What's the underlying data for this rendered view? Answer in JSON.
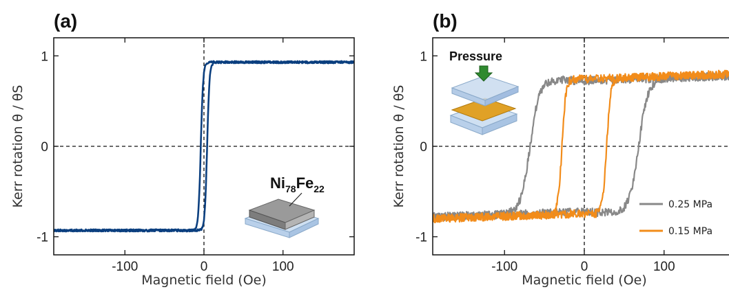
{
  "chart_data": [
    {
      "type": "line",
      "panel_label": "(a)",
      "xlabel": "Magnetic field (Oe)",
      "ylabel": "Kerr rotation θ / θS",
      "xlim": [
        -190,
        190
      ],
      "ylim": [
        -1.2,
        1.2
      ],
      "xticks": [
        -100,
        0,
        100
      ],
      "yticks": [
        -1,
        0,
        1
      ],
      "xtick_labels": [
        "-100",
        "0",
        "100"
      ],
      "ytick_labels": [
        "-1",
        "0",
        "1"
      ],
      "reference_lines": {
        "x": 0,
        "y": 0,
        "style": "dashed"
      },
      "annotation": {
        "text": "Ni78Fe22",
        "base": "Ni",
        "sub1": "78",
        "mid": "Fe",
        "sub2": "22"
      },
      "series": [
        {
          "color": "#0b3f7f",
          "loop": true,
          "saturation": 0.93,
          "coercive_field": 4,
          "branch_width": 3,
          "points": {
            "x": [
              -190,
              -100,
              -20,
              -9,
              -6,
              -3,
              0,
              3,
              6,
              9,
              20,
              100,
              190
            ],
            "y_descending": [
              -0.92,
              -0.92,
              -0.91,
              -0.89,
              -0.75,
              -0.35,
              0.0,
              0.45,
              0.85,
              0.92,
              0.95,
              0.93,
              0.92
            ],
            "y_ascending": [
              -0.92,
              -0.92,
              -0.91,
              -0.9,
              -0.88,
              -0.85,
              -0.8,
              -0.3,
              0.8,
              0.91,
              0.94,
              0.93,
              0.92
            ]
          }
        }
      ]
    },
    {
      "type": "line",
      "panel_label": "(b)",
      "xlabel": "Magnetic field (Oe)",
      "ylabel": "Kerr rotation θ / θS",
      "xlim": [
        -190,
        190
      ],
      "ylim": [
        -1.2,
        1.2
      ],
      "xticks": [
        -100,
        0,
        100
      ],
      "yticks": [
        -1,
        0,
        1
      ],
      "xtick_labels": [
        "-100",
        "0",
        "100"
      ],
      "ytick_labels": [
        "-1",
        "0",
        "1"
      ],
      "reference_lines": {
        "x": 0,
        "y": 0,
        "style": "dashed"
      },
      "annotation": {
        "text": "Pressure"
      },
      "series": [
        {
          "name": "0.25 MPa",
          "color": "#888888",
          "loop": true,
          "saturation": 0.78,
          "coercive_field": 68,
          "switching_width": 12,
          "x_sampled": [
            -190,
            -120,
            -90,
            -75,
            -70,
            -65,
            -55,
            -30,
            0,
            40,
            60,
            65,
            70,
            90,
            190
          ],
          "y_ascending_branch": [
            -0.8,
            -0.78,
            -0.74,
            -0.55,
            -0.1,
            0.35,
            0.6,
            0.68,
            0.76,
            0.78,
            0.78,
            0.78,
            0.79,
            0.8,
            0.82
          ],
          "y_descending_branch": [
            -0.8,
            -0.78,
            -0.78,
            -0.75,
            -0.74,
            -0.7,
            -0.66,
            -0.6,
            -0.55,
            -0.45,
            -0.2,
            0.05,
            0.35,
            0.65,
            0.82
          ]
        },
        {
          "name": "0.15 MPa",
          "color": "#f28c1a",
          "loop": true,
          "saturation": 0.8,
          "coercive_field": 28,
          "switching_width": 5,
          "x_sampled": [
            -190,
            -40,
            -32,
            -28,
            -24,
            -15,
            0,
            20,
            25,
            28,
            32,
            40,
            190
          ],
          "y_ascending_branch": [
            -0.8,
            -0.78,
            -0.55,
            0.1,
            0.6,
            0.72,
            0.78,
            0.79,
            0.8,
            0.8,
            0.81,
            0.82,
            0.84
          ],
          "y_descending_branch": [
            -0.8,
            -0.78,
            -0.77,
            -0.76,
            -0.75,
            -0.74,
            -0.72,
            -0.66,
            -0.4,
            0.1,
            0.55,
            0.75,
            0.84
          ]
        }
      ]
    }
  ]
}
